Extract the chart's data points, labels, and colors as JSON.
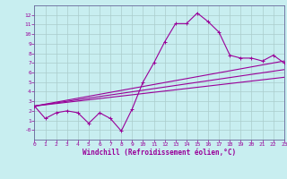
{
  "title": "",
  "xlabel": "Windchill (Refroidissement éolien,°C)",
  "ylabel": "",
  "bg_color": "#c8eef0",
  "grid_color": "#aacccc",
  "line_color": "#990099",
  "spine_color": "#666699",
  "xlim": [
    0,
    23
  ],
  "ylim": [
    -1,
    13
  ],
  "xticks": [
    0,
    1,
    2,
    3,
    4,
    5,
    6,
    7,
    8,
    9,
    10,
    11,
    12,
    13,
    14,
    15,
    16,
    17,
    18,
    19,
    20,
    21,
    22,
    23
  ],
  "yticks": [
    0,
    1,
    2,
    3,
    4,
    5,
    6,
    7,
    8,
    9,
    10,
    11,
    12
  ],
  "ytick_labels": [
    "-0",
    "1",
    "2",
    "3",
    "4",
    "5",
    "6",
    "7",
    "8",
    "9",
    "10",
    "11",
    "12"
  ],
  "main_x": [
    0,
    1,
    2,
    3,
    4,
    5,
    6,
    7,
    8,
    9,
    10,
    11,
    12,
    13,
    14,
    15,
    16,
    17,
    18,
    19,
    20,
    21,
    22,
    23
  ],
  "main_y": [
    2.5,
    1.2,
    1.8,
    2.0,
    1.8,
    0.7,
    1.8,
    1.2,
    -0.1,
    2.2,
    5.0,
    7.0,
    9.2,
    11.1,
    11.1,
    12.2,
    11.3,
    10.2,
    7.8,
    7.5,
    7.5,
    7.2,
    7.8,
    7.0
  ],
  "line2_x": [
    0,
    23
  ],
  "line2_y": [
    2.5,
    5.5
  ],
  "line3_x": [
    0,
    23
  ],
  "line3_y": [
    2.5,
    6.3
  ],
  "line4_x": [
    0,
    23
  ],
  "line4_y": [
    2.5,
    7.2
  ],
  "marker_size": 2.5,
  "line_width": 0.8,
  "tick_fontsize": 4.5,
  "xlabel_fontsize": 5.5
}
